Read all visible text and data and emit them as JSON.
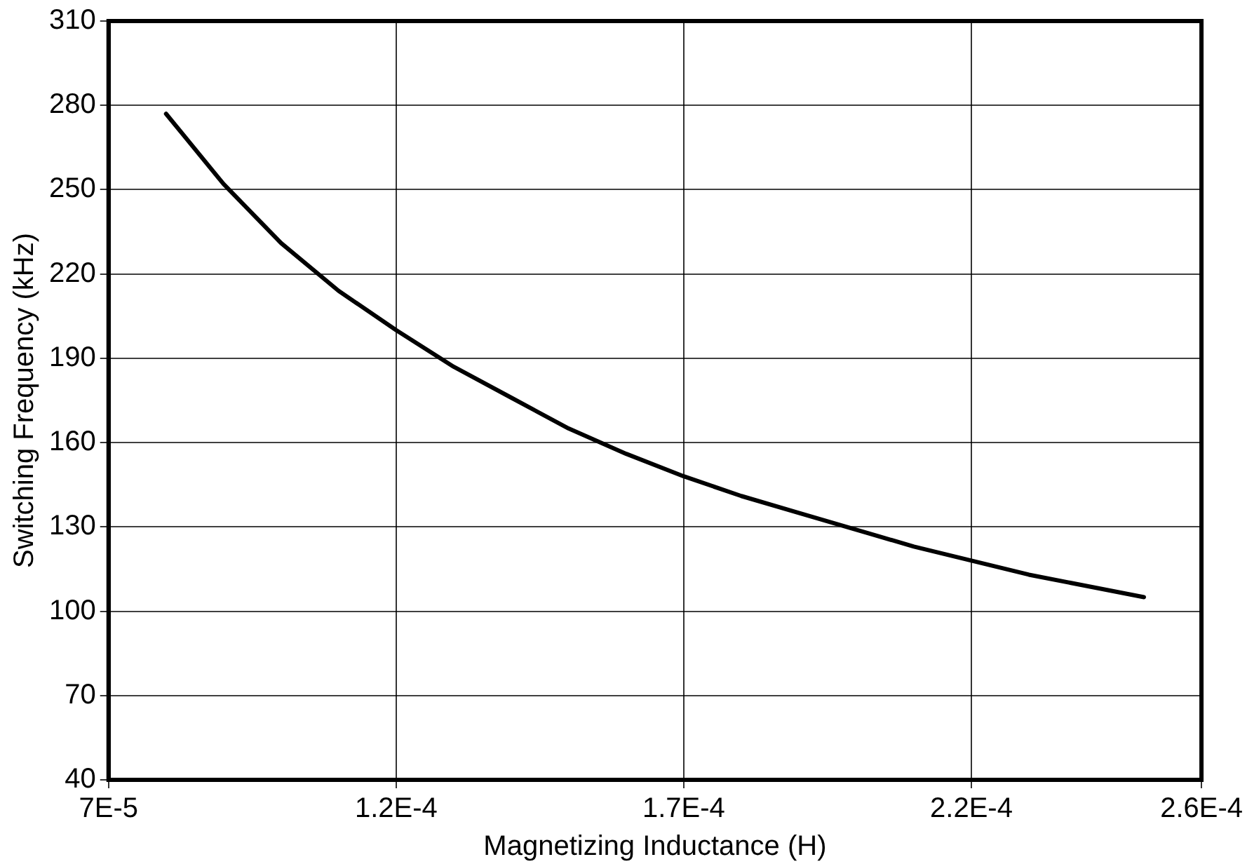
{
  "chart_data": {
    "type": "line",
    "xlabel": "Magnetizing Inductance (H)",
    "ylabel": "Switching Frequency (kHz)",
    "x": [
      8e-05,
      9e-05,
      0.0001,
      0.00011,
      0.00012,
      0.00013,
      0.00014,
      0.00015,
      0.00016,
      0.00017,
      0.00018,
      0.00019,
      0.0002,
      0.00021,
      0.00022,
      0.00023,
      0.00024,
      0.00025
    ],
    "series": [
      {
        "color": "#000000",
        "values": [
          277,
          252,
          231,
          214,
          200,
          187,
          176,
          165,
          156,
          148,
          141,
          135,
          129,
          123,
          118,
          113,
          109,
          105
        ]
      }
    ],
    "xlim": [
      7e-05,
      0.00026
    ],
    "xticks": [
      {
        "value": 7e-05,
        "label": "7E-5"
      },
      {
        "value": 0.00012,
        "label": "1.2E-4"
      },
      {
        "value": 0.00017,
        "label": "1.7E-4"
      },
      {
        "value": 0.00022,
        "label": "2.2E-4"
      },
      {
        "value": 0.00026,
        "label": "2.6E-4"
      }
    ],
    "ylim": [
      40,
      310
    ],
    "yticks": [
      40,
      70,
      100,
      130,
      160,
      190,
      220,
      250,
      280,
      310
    ],
    "grid": true,
    "legend": false,
    "marker": "none",
    "line_style": "solid"
  }
}
